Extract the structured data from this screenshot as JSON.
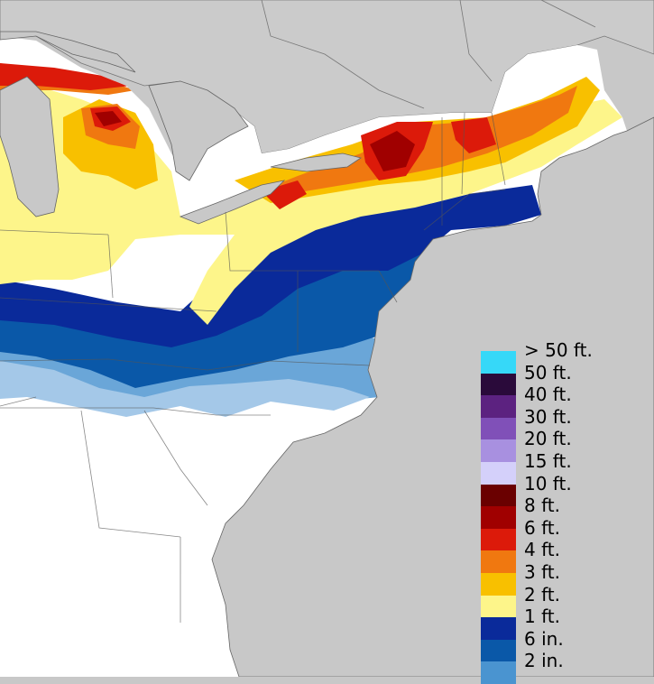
{
  "legend": {
    "items": [
      {
        "label": "> 50 ft.",
        "color": "#36d8f8"
      },
      {
        "label": "50 ft.",
        "color": "#2a0a3a"
      },
      {
        "label": "40 ft.",
        "color": "#5c2280"
      },
      {
        "label": "30 ft.",
        "color": "#8050b8"
      },
      {
        "label": "20 ft.",
        "color": "#a890e0"
      },
      {
        "label": "15 ft.",
        "color": "#d4d0fa"
      },
      {
        "label": "10 ft.",
        "color": "#6a0000"
      },
      {
        "label": "8 ft.",
        "color": "#a00000"
      },
      {
        "label": "6 ft.",
        "color": "#dc1a0a"
      },
      {
        "label": "4 ft.",
        "color": "#f07810"
      },
      {
        "label": "3 ft.",
        "color": "#f8c000"
      },
      {
        "label": "2 ft.",
        "color": "#fdf58a"
      },
      {
        "label": "1 ft.",
        "color": "#0a2a9a"
      },
      {
        "label": "6 in.",
        "color": "#0a58a8"
      },
      {
        "label": "2 in.",
        "color": "#4a94d0"
      }
    ]
  },
  "map": {
    "ocean_color": "#c8c8c8",
    "outside_land_color": "#c8c8c8",
    "no_snow_color": "#ffffff",
    "border_color": "#666666"
  }
}
